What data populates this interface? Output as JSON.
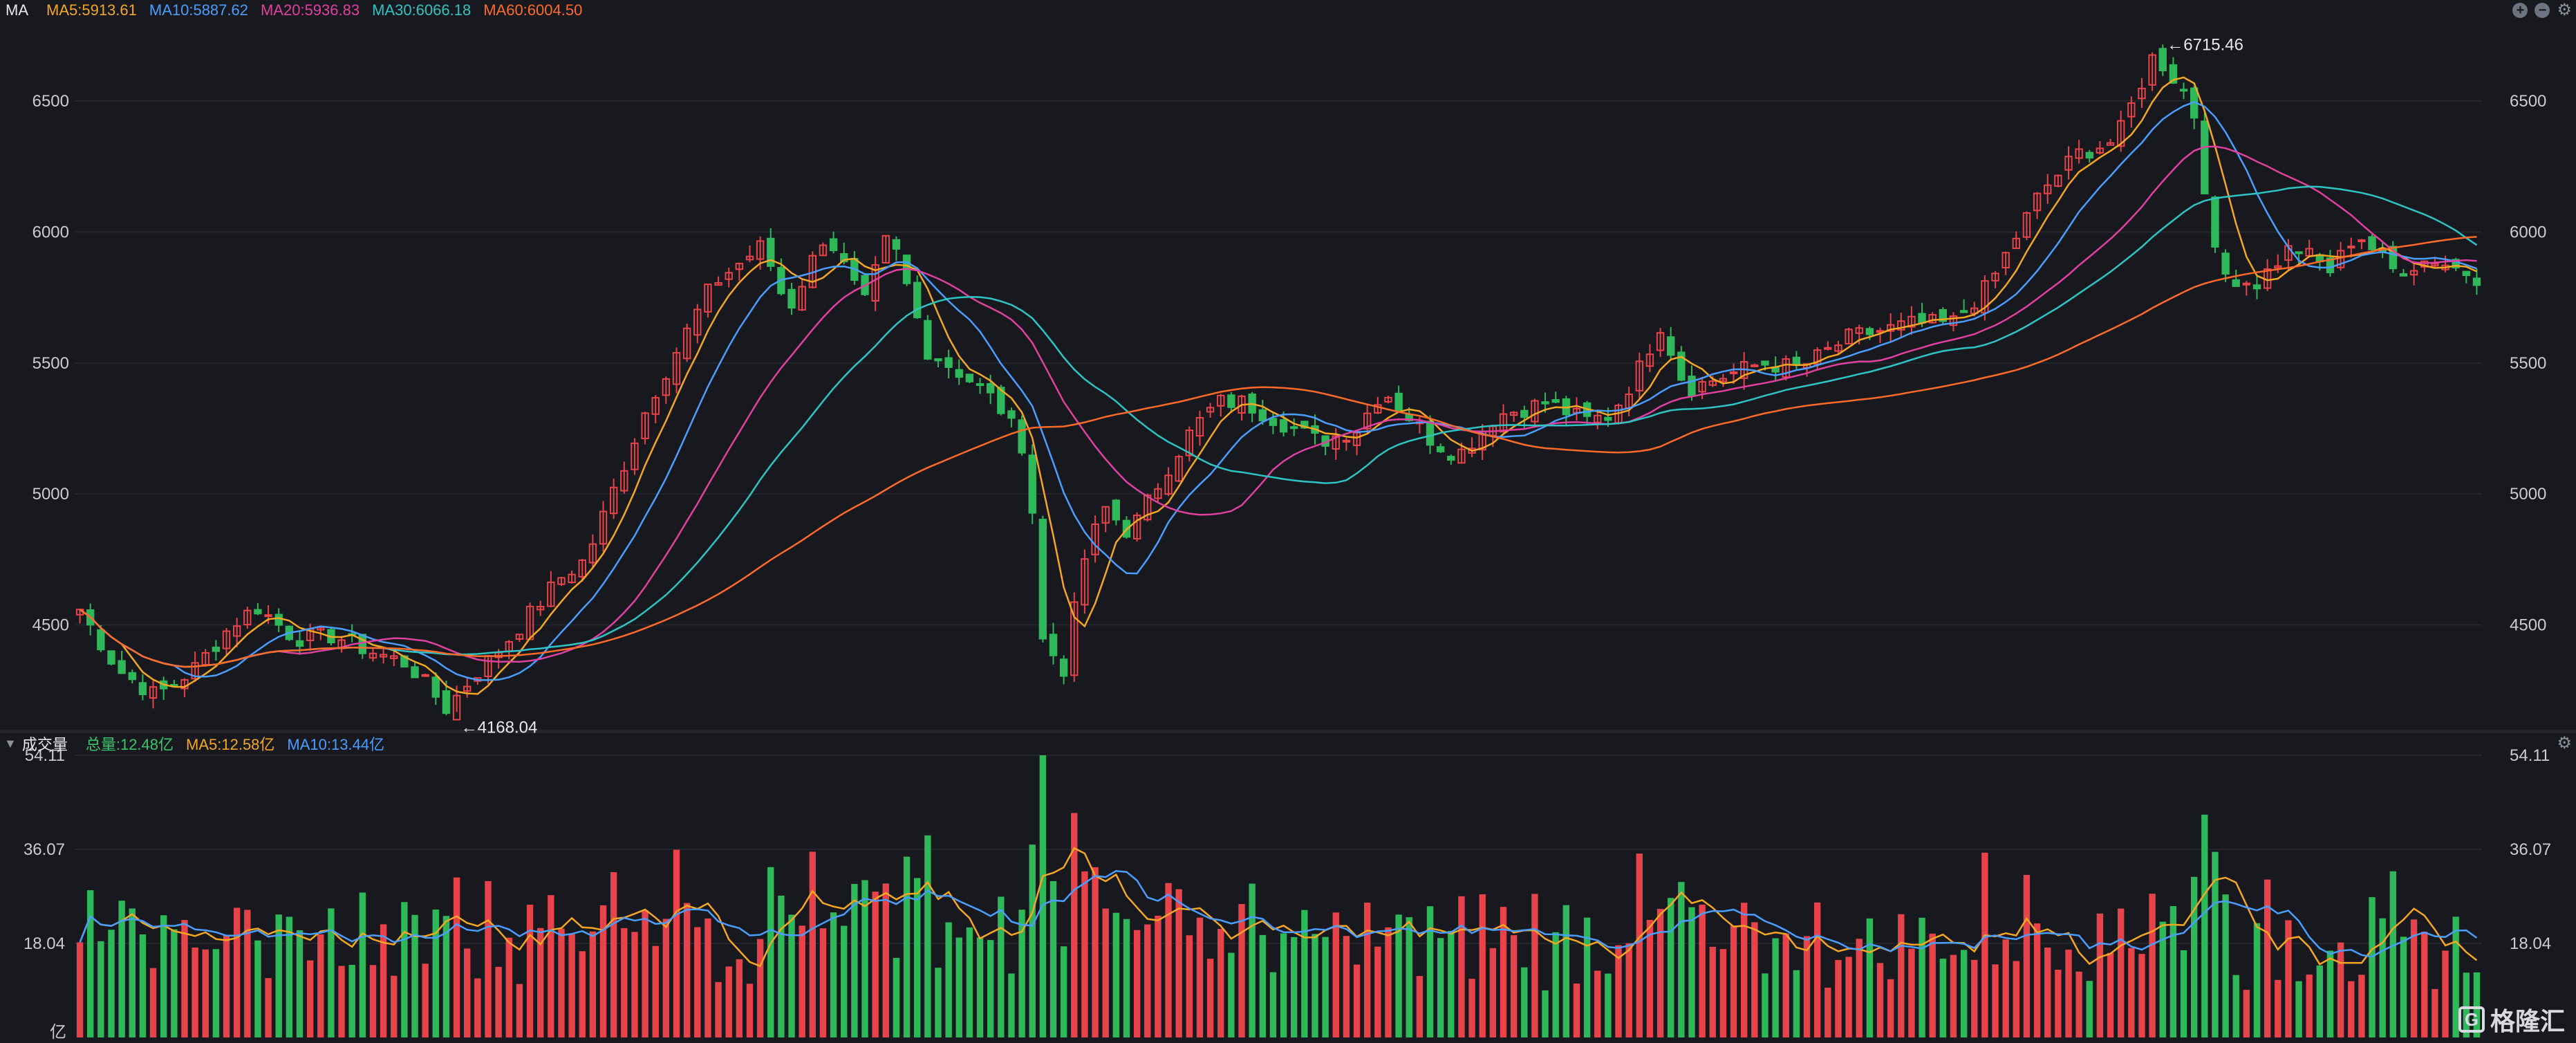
{
  "price_panel": {
    "label": "MA",
    "indicators": [
      {
        "text": "MA5:5913.61",
        "color": "#f5a623"
      },
      {
        "text": "MA10:5887.62",
        "color": "#4a9eff"
      },
      {
        "text": "MA20:5936.83",
        "color": "#e040a0"
      },
      {
        "text": "MA30:6066.18",
        "color": "#2ec4c4"
      },
      {
        "text": "MA60:6004.50",
        "color": "#ff6a2a"
      }
    ],
    "high_annotation": "←6715.46",
    "low_annotation": "←4168.04",
    "y_ticks": [
      "6500",
      "6000",
      "5500",
      "5000",
      "4500"
    ]
  },
  "volume_panel": {
    "label": "成交量",
    "indicators": [
      {
        "text": "总量:12.48亿",
        "color": "#3cc46a"
      },
      {
        "text": "MA5:12.58亿",
        "color": "#f5a623"
      },
      {
        "text": "MA10:13.44亿",
        "color": "#4a9eff"
      }
    ],
    "y_ticks": [
      "54.11",
      "36.07",
      "18.04"
    ],
    "unit": "亿"
  },
  "colors": {
    "up": "#e8434a",
    "down": "#2fb85a",
    "background": "#17191e",
    "grid": "#23262d"
  },
  "icons": [
    "plus-circle-icon",
    "minus-circle-icon",
    "gear-icon",
    "chevron-down-icon",
    "gelonghui-logo-icon"
  ],
  "watermark": {
    "logo_letter": "G",
    "text": "格隆汇"
  },
  "chart_data": {
    "type": "candlestick",
    "title": "",
    "ylim": [
      4140,
      6780
    ],
    "volume_ylim": [
      0,
      54.11
    ],
    "count": 230,
    "keypoints": [
      [
        0,
        4560
      ],
      [
        6,
        4330
      ],
      [
        12,
        4230
      ],
      [
        18,
        4330
      ],
      [
        24,
        4500
      ],
      [
        28,
        4570
      ],
      [
        34,
        4450
      ],
      [
        40,
        4460
      ],
      [
        46,
        4400
      ],
      [
        52,
        4350
      ],
      [
        58,
        4180
      ],
      [
        62,
        4300
      ],
      [
        68,
        4450
      ],
      [
        76,
        4680
      ],
      [
        80,
        4750
      ],
      [
        90,
        5350
      ],
      [
        100,
        5800
      ],
      [
        108,
        5950
      ],
      [
        112,
        5700
      ],
      [
        118,
        6000
      ],
      [
        124,
        5720
      ],
      [
        128,
        6000
      ],
      [
        134,
        5550
      ],
      [
        140,
        5450
      ],
      [
        145,
        5350
      ],
      [
        150,
        5150
      ],
      [
        152,
        4450
      ],
      [
        156,
        4320
      ],
      [
        158,
        4700
      ],
      [
        162,
        4950
      ],
      [
        166,
        4850
      ],
      [
        172,
        5100
      ],
      [
        176,
        5250
      ],
      [
        180,
        5350
      ],
      [
        184,
        5350
      ],
      [
        188,
        5300
      ],
      [
        192,
        5250
      ],
      [
        196,
        5200
      ],
      [
        202,
        5250
      ],
      [
        206,
        5400
      ],
      [
        210,
        5300
      ],
      [
        214,
        5200
      ],
      [
        218,
        5150
      ],
      [
        224,
        5300
      ],
      [
        232,
        5350
      ],
      [
        238,
        5280
      ],
      [
        242,
        5300
      ],
      [
        246,
        5450
      ],
      [
        250,
        5650
      ],
      [
        254,
        5400
      ],
      [
        260,
        5450
      ],
      [
        266,
        5500
      ],
      [
        272,
        5480
      ],
      [
        280,
        5600
      ],
      [
        290,
        5650
      ],
      [
        296,
        5650
      ],
      [
        302,
        5800
      ],
      [
        310,
        6150
      ],
      [
        316,
        6300
      ],
      [
        322,
        6350
      ],
      [
        328,
        6680
      ],
      [
        334,
        6500
      ],
      [
        338,
        5850
      ],
      [
        344,
        5800
      ],
      [
        350,
        5950
      ],
      [
        356,
        5850
      ],
      [
        360,
        6000
      ],
      [
        366,
        5850
      ],
      [
        372,
        5900
      ],
      [
        379,
        5830
      ]
    ],
    "high": 6715.46,
    "low": 4168.04,
    "ma_series": [
      {
        "name": "MA5",
        "period": 5,
        "color": "#f5a623",
        "last": 5913.61
      },
      {
        "name": "MA10",
        "period": 10,
        "color": "#4a9eff",
        "last": 5887.62
      },
      {
        "name": "MA20",
        "period": 20,
        "color": "#e040a0",
        "last": 5936.83
      },
      {
        "name": "MA30",
        "period": 30,
        "color": "#2ec4c4",
        "last": 6066.18
      },
      {
        "name": "MA60",
        "period": 60,
        "color": "#ff6a2a",
        "last": 6004.5
      }
    ],
    "volume_ma": [
      {
        "name": "MA5",
        "period": 5,
        "color": "#f5a623",
        "last": 12.58
      },
      {
        "name": "MA10",
        "period": 10,
        "color": "#4a9eff",
        "last": 13.44
      }
    ],
    "last_volume": 12.48
  }
}
